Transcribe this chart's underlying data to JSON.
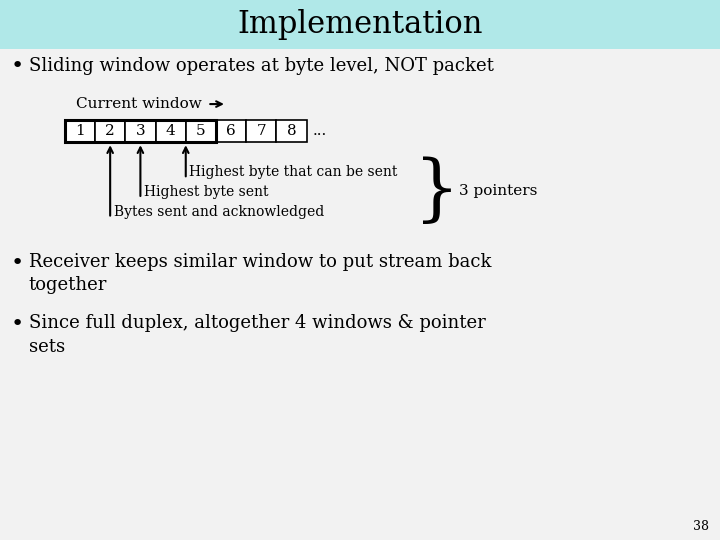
{
  "title": "Implementation",
  "title_bg": "#b0e8e8",
  "bg_color": "#f2f2f2",
  "bullet1": "Sliding window operates at byte level, NOT packet",
  "current_window_label": "Current window",
  "bytes": [
    "1",
    "2",
    "3",
    "4",
    "5",
    "6",
    "7",
    "8",
    "..."
  ],
  "bracket_label": "3 pointers",
  "label_highest_can": "Highest byte that can be sent",
  "label_highest_sent": "Highest byte sent",
  "label_bytes_ack": "Bytes sent and acknowledged",
  "bullet2": "Receiver keeps similar window to put stream back\ntogether",
  "bullet3": "Since full duplex, altogether 4 windows & pointer\nsets",
  "page_num": "38"
}
